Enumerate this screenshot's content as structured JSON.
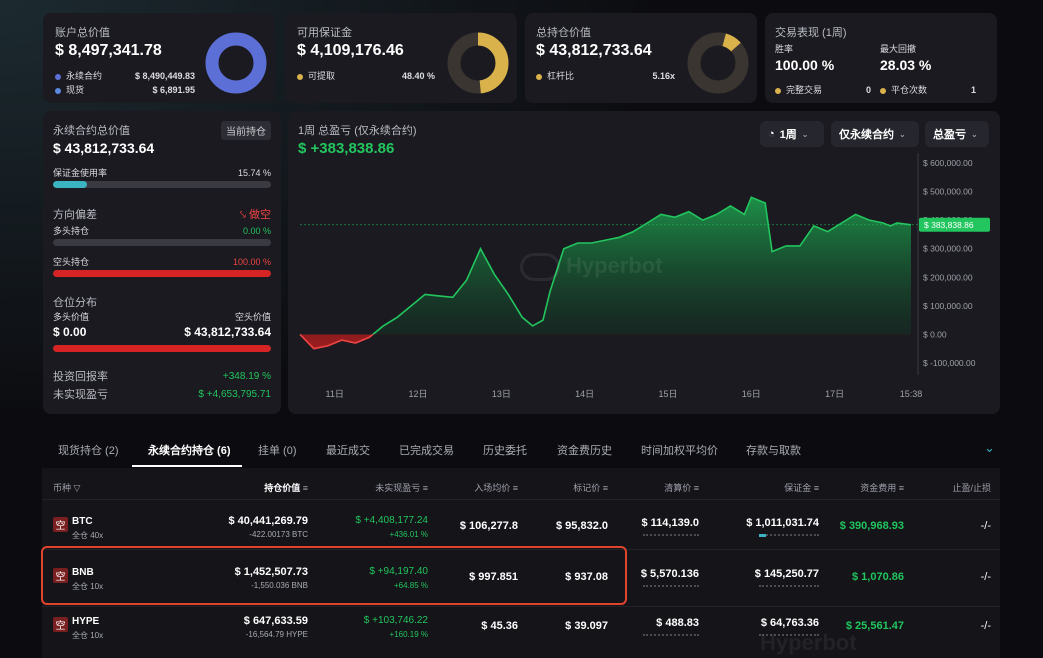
{
  "account": {
    "title": "账户总价值",
    "value": "$ 8,497,341.78",
    "rows": [
      {
        "label": "永续合约",
        "value": "$ 8,490,449.83",
        "color": "#5b6fd6"
      },
      {
        "label": "现货",
        "value": "$ 6,891.95",
        "color": "#5b8be0"
      }
    ]
  },
  "margin": {
    "title": "可用保证金",
    "value": "$ 4,109,176.46",
    "row": {
      "label": "可提取",
      "value": "48.40 %"
    },
    "fraction": 0.484,
    "color": "#d9b24c"
  },
  "position": {
    "title": "总持仓价值",
    "value": "$ 43,812,733.64",
    "row": {
      "label": "杠杆比",
      "value": "5.16x"
    }
  },
  "performance": {
    "title": "交易表现 (1周)",
    "winrate_label": "胜率",
    "winrate": "100.00 %",
    "drawdown_label": "最大回撤",
    "drawdown": "28.03 %",
    "completed_label": "完整交易",
    "completed": "0",
    "closes_label": "平仓次数",
    "closes": "1"
  },
  "perp": {
    "title": "永续合约总价值",
    "tag": "当前持仓",
    "value": "$ 43,812,733.64",
    "usage_label": "保证金使用率",
    "usage": "15.74 %",
    "usage_fraction": 0.1574,
    "bias_label": "方向偏差",
    "bias": "做空",
    "long_label": "多头持仓",
    "long_pct": "0.00 %",
    "short_label": "空头持仓",
    "short_pct": "100.00 %",
    "dist_label": "仓位分布",
    "long_value_label": "多头价值",
    "short_value_label": "空头价值",
    "long_value": "$ 0.00",
    "short_value": "$ 43,812,733.64",
    "roi_label": "投资回报率",
    "roi": "+348.19 %",
    "upnl_label": "未实现盈亏",
    "upnl": "$ +4,653,795.71"
  },
  "pnl": {
    "title": "1周 总盈亏 (仅永续合约)",
    "value": "$ +383,838.86",
    "period": "1周",
    "scope": "仅永续合约",
    "metric": "总盈亏",
    "watermark": "Hyperbot",
    "current_label": "$ 383,838.86"
  },
  "chart_data": {
    "type": "area",
    "title": "1周 总盈亏 (仅永续合约)",
    "x_ticks": [
      "11日",
      "12日",
      "13日",
      "14日",
      "15日",
      "16日",
      "17日",
      "15:38"
    ],
    "y_ticks": [
      "$ 600,000.00",
      "$ 500,000.00",
      "$ 400,000.00",
      "$ 300,000.00",
      "$ 200,000.00",
      "$ 100,000.00",
      "$ 0.00",
      "$ -100,000.00"
    ],
    "ylim": [
      -100000,
      600000
    ],
    "x_range": [
      0,
      88
    ],
    "x_tick_positions": [
      5,
      17,
      29,
      41,
      53,
      65,
      77,
      88
    ],
    "points": [
      [
        0,
        0
      ],
      [
        2,
        -50000
      ],
      [
        4,
        -40000
      ],
      [
        6,
        -20000
      ],
      [
        8,
        -30000
      ],
      [
        10,
        -10000
      ],
      [
        12,
        30000
      ],
      [
        14,
        60000
      ],
      [
        16,
        100000
      ],
      [
        18,
        140000
      ],
      [
        20,
        135000
      ],
      [
        22,
        130000
      ],
      [
        24,
        190000
      ],
      [
        26,
        300000
      ],
      [
        28,
        210000
      ],
      [
        30,
        140000
      ],
      [
        32,
        60000
      ],
      [
        33.5,
        30000
      ],
      [
        35,
        50000
      ],
      [
        36,
        150000
      ],
      [
        38,
        300000
      ],
      [
        40,
        320000
      ],
      [
        42,
        320000
      ],
      [
        44,
        330000
      ],
      [
        46,
        340000
      ],
      [
        48,
        360000
      ],
      [
        50,
        390000
      ],
      [
        52,
        420000
      ],
      [
        54,
        410000
      ],
      [
        56,
        430000
      ],
      [
        58,
        400000
      ],
      [
        60,
        420000
      ],
      [
        62,
        450000
      ],
      [
        64,
        420000
      ],
      [
        65,
        480000
      ],
      [
        67,
        460000
      ],
      [
        68,
        290000
      ],
      [
        70,
        310000
      ],
      [
        72,
        310000
      ],
      [
        74,
        380000
      ],
      [
        76,
        360000
      ],
      [
        78,
        390000
      ],
      [
        80,
        420000
      ],
      [
        82,
        400000
      ],
      [
        84,
        390000
      ],
      [
        85,
        380000
      ],
      [
        86,
        390000
      ],
      [
        88,
        383838.86
      ]
    ],
    "grid": true
  },
  "tabs": [
    "现货持仓 (2)",
    "永续合约持仓 (6)",
    "挂单 (0)",
    "最近成交",
    "已完成交易",
    "历史委托",
    "资金费历史",
    "时间加权平均价",
    "存款与取款"
  ],
  "columns": [
    "币种",
    "持仓价值",
    "未实现盈亏",
    "入场均价",
    "标记价",
    "清算价",
    "保证金",
    "资金费用",
    "止盈/止损"
  ],
  "rows": [
    {
      "coin": "BTC",
      "mode": "全仓 40x",
      "value": "$ 40,441,269.79",
      "size": "-422.00173 BTC",
      "pnl": "$ +4,408,177.24",
      "pnl_pct": "+436.01 %",
      "entry": "$ 106,277.8",
      "mark": "$ 95,832.0",
      "liq": "$ 114,139.0",
      "margin": "$ 1,011,031.74",
      "funding": "$ 390,968.93",
      "tpsl": "-/-"
    },
    {
      "coin": "BNB",
      "mode": "全仓 10x",
      "value": "$ 1,452,507.73",
      "size": "-1,550.036 BNB",
      "pnl": "$ +94,197.40",
      "pnl_pct": "+64.85 %",
      "entry": "$ 997.851",
      "mark": "$ 937.08",
      "liq": "$ 5,570.136",
      "margin": "$ 145,250.77",
      "funding": "$ 1,070.86",
      "tpsl": "-/-"
    },
    {
      "coin": "HYPE",
      "mode": "全仓 10x",
      "value": "$ 647,633.59",
      "size": "-16,564.79 HYPE",
      "pnl": "$ +103,746.22",
      "pnl_pct": "+160.19 %",
      "entry": "$ 45.36",
      "mark": "$ 39.097",
      "liq": "$ 488.83",
      "margin": "$ 64,763.36",
      "funding": "$ 25,561.47",
      "tpsl": "-/-"
    }
  ],
  "short_badge": "空",
  "colors": {
    "green": "#22c55e",
    "red": "#ef4444",
    "blue": "#5b6fd6",
    "gold": "#d9b24c",
    "highlight": "#e0442c"
  }
}
